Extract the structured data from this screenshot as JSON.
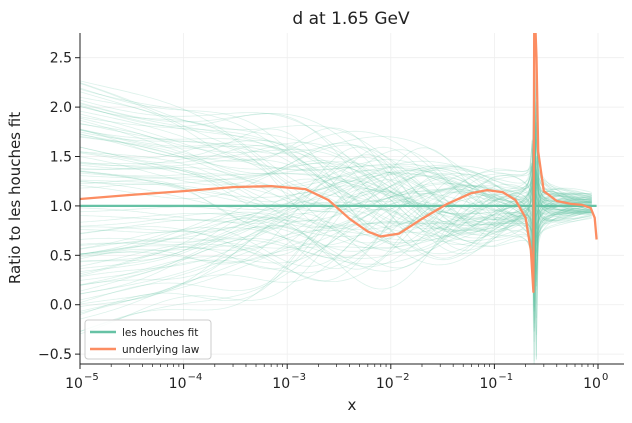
{
  "chart_data": {
    "type": "line",
    "title": "d at 1.65 GeV",
    "xlabel": "x",
    "ylabel": "Ratio to les houches fit",
    "xscale": "log",
    "xlim": [
      1e-05,
      1.0
    ],
    "ylim": [
      -0.6,
      2.75
    ],
    "xticks": [
      1e-05,
      0.0001,
      0.001,
      0.01,
      0.1,
      1
    ],
    "xtick_labels": [
      "10",
      "10",
      "10",
      "10",
      "10",
      "10"
    ],
    "xtick_exponents": [
      "−5",
      "−4",
      "−3",
      "−2",
      "−1",
      "0"
    ],
    "yticks": [
      -0.5,
      0.0,
      0.5,
      1.0,
      1.5,
      2.0,
      2.5
    ],
    "ytick_labels": [
      "−0.5",
      "0.0",
      "0.5",
      "1.0",
      "1.5",
      "2.0",
      "2.5"
    ],
    "grid": true,
    "legend_position": "lower-left",
    "replica_band": {
      "count": 100,
      "color": "#66c2a5",
      "description": "thin translucent replica curves spread around the fit"
    },
    "series": [
      {
        "name": "les houches fit",
        "color": "#66c2a5",
        "x": [
          1e-05,
          0.0001,
          0.001,
          0.01,
          0.1,
          0.2,
          0.24,
          0.245,
          0.3,
          0.5,
          0.8,
          0.97
        ],
        "y": [
          1.0,
          1.0,
          1.0,
          1.0,
          1.0,
          1.0,
          1.0,
          1.0,
          1.0,
          1.0,
          1.0,
          1.0
        ]
      },
      {
        "name": "underlying law",
        "color": "#fc8d62",
        "x": [
          1e-05,
          3e-05,
          0.0001,
          0.0003,
          0.0007,
          0.0015,
          0.0025,
          0.004,
          0.006,
          0.008,
          0.012,
          0.02,
          0.035,
          0.06,
          0.085,
          0.12,
          0.16,
          0.2,
          0.225,
          0.238,
          0.242,
          0.245,
          0.25,
          0.255,
          0.265,
          0.3,
          0.4,
          0.55,
          0.7,
          0.85,
          0.93,
          0.97
        ],
        "y": [
          1.07,
          1.11,
          1.15,
          1.19,
          1.2,
          1.17,
          1.06,
          0.87,
          0.74,
          0.69,
          0.72,
          0.87,
          1.02,
          1.13,
          1.16,
          1.14,
          1.06,
          0.88,
          0.55,
          0.13,
          2.75,
          2.75,
          2.75,
          2.5,
          1.55,
          1.15,
          1.05,
          1.02,
          1.01,
          0.98,
          0.88,
          0.66
        ]
      }
    ]
  }
}
